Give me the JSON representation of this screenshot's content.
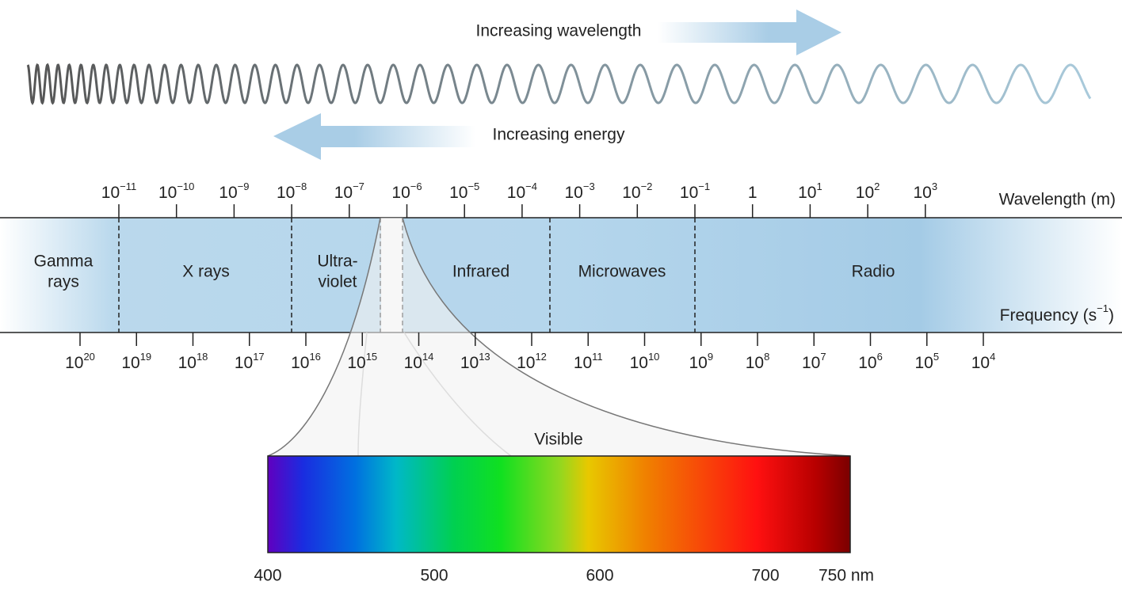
{
  "arrows": {
    "wavelength": "Increasing wavelength",
    "energy": "Increasing energy"
  },
  "wavelength_axis": {
    "label": "Wavelength (m)",
    "ticks": [
      {
        "base": "10",
        "sup": "−11"
      },
      {
        "base": "10",
        "sup": "−10"
      },
      {
        "base": "10",
        "sup": "−9"
      },
      {
        "base": "10",
        "sup": "−8"
      },
      {
        "base": "10",
        "sup": "−7"
      },
      {
        "base": "10",
        "sup": "−6"
      },
      {
        "base": "10",
        "sup": "−5"
      },
      {
        "base": "10",
        "sup": "−4"
      },
      {
        "base": "10",
        "sup": "−3"
      },
      {
        "base": "10",
        "sup": "−2"
      },
      {
        "base": "10",
        "sup": "−1"
      },
      {
        "base": "1"
      },
      {
        "base": "10",
        "sup": "1"
      },
      {
        "base": "10",
        "sup": "2"
      },
      {
        "base": "10",
        "sup": "3"
      }
    ]
  },
  "frequency_axis": {
    "label": {
      "text": "Frequency (s",
      "sup": "−1",
      "close": ")"
    },
    "ticks": [
      {
        "base": "10",
        "sup": "20"
      },
      {
        "base": "10",
        "sup": "19"
      },
      {
        "base": "10",
        "sup": "18"
      },
      {
        "base": "10",
        "sup": "17"
      },
      {
        "base": "10",
        "sup": "16"
      },
      {
        "base": "10",
        "sup": "15"
      },
      {
        "base": "10",
        "sup": "14"
      },
      {
        "base": "10",
        "sup": "13"
      },
      {
        "base": "10",
        "sup": "12"
      },
      {
        "base": "10",
        "sup": "11"
      },
      {
        "base": "10",
        "sup": "10"
      },
      {
        "base": "10",
        "sup": "9"
      },
      {
        "base": "10",
        "sup": "8"
      },
      {
        "base": "10",
        "sup": "7"
      },
      {
        "base": "10",
        "sup": "6"
      },
      {
        "base": "10",
        "sup": "5"
      },
      {
        "base": "10",
        "sup": "4"
      }
    ]
  },
  "regions": [
    {
      "lines": [
        "Gamma",
        "rays"
      ]
    },
    {
      "lines": [
        "X rays"
      ]
    },
    {
      "lines": [
        "Ultra-",
        "violet"
      ]
    },
    {
      "lines": [
        "Infrared"
      ]
    },
    {
      "lines": [
        "Microwaves"
      ]
    },
    {
      "lines": [
        "Radio"
      ]
    }
  ],
  "visible": {
    "title": "Visible",
    "scale": [
      "400",
      "500",
      "600",
      "700",
      "750 nm"
    ]
  }
}
